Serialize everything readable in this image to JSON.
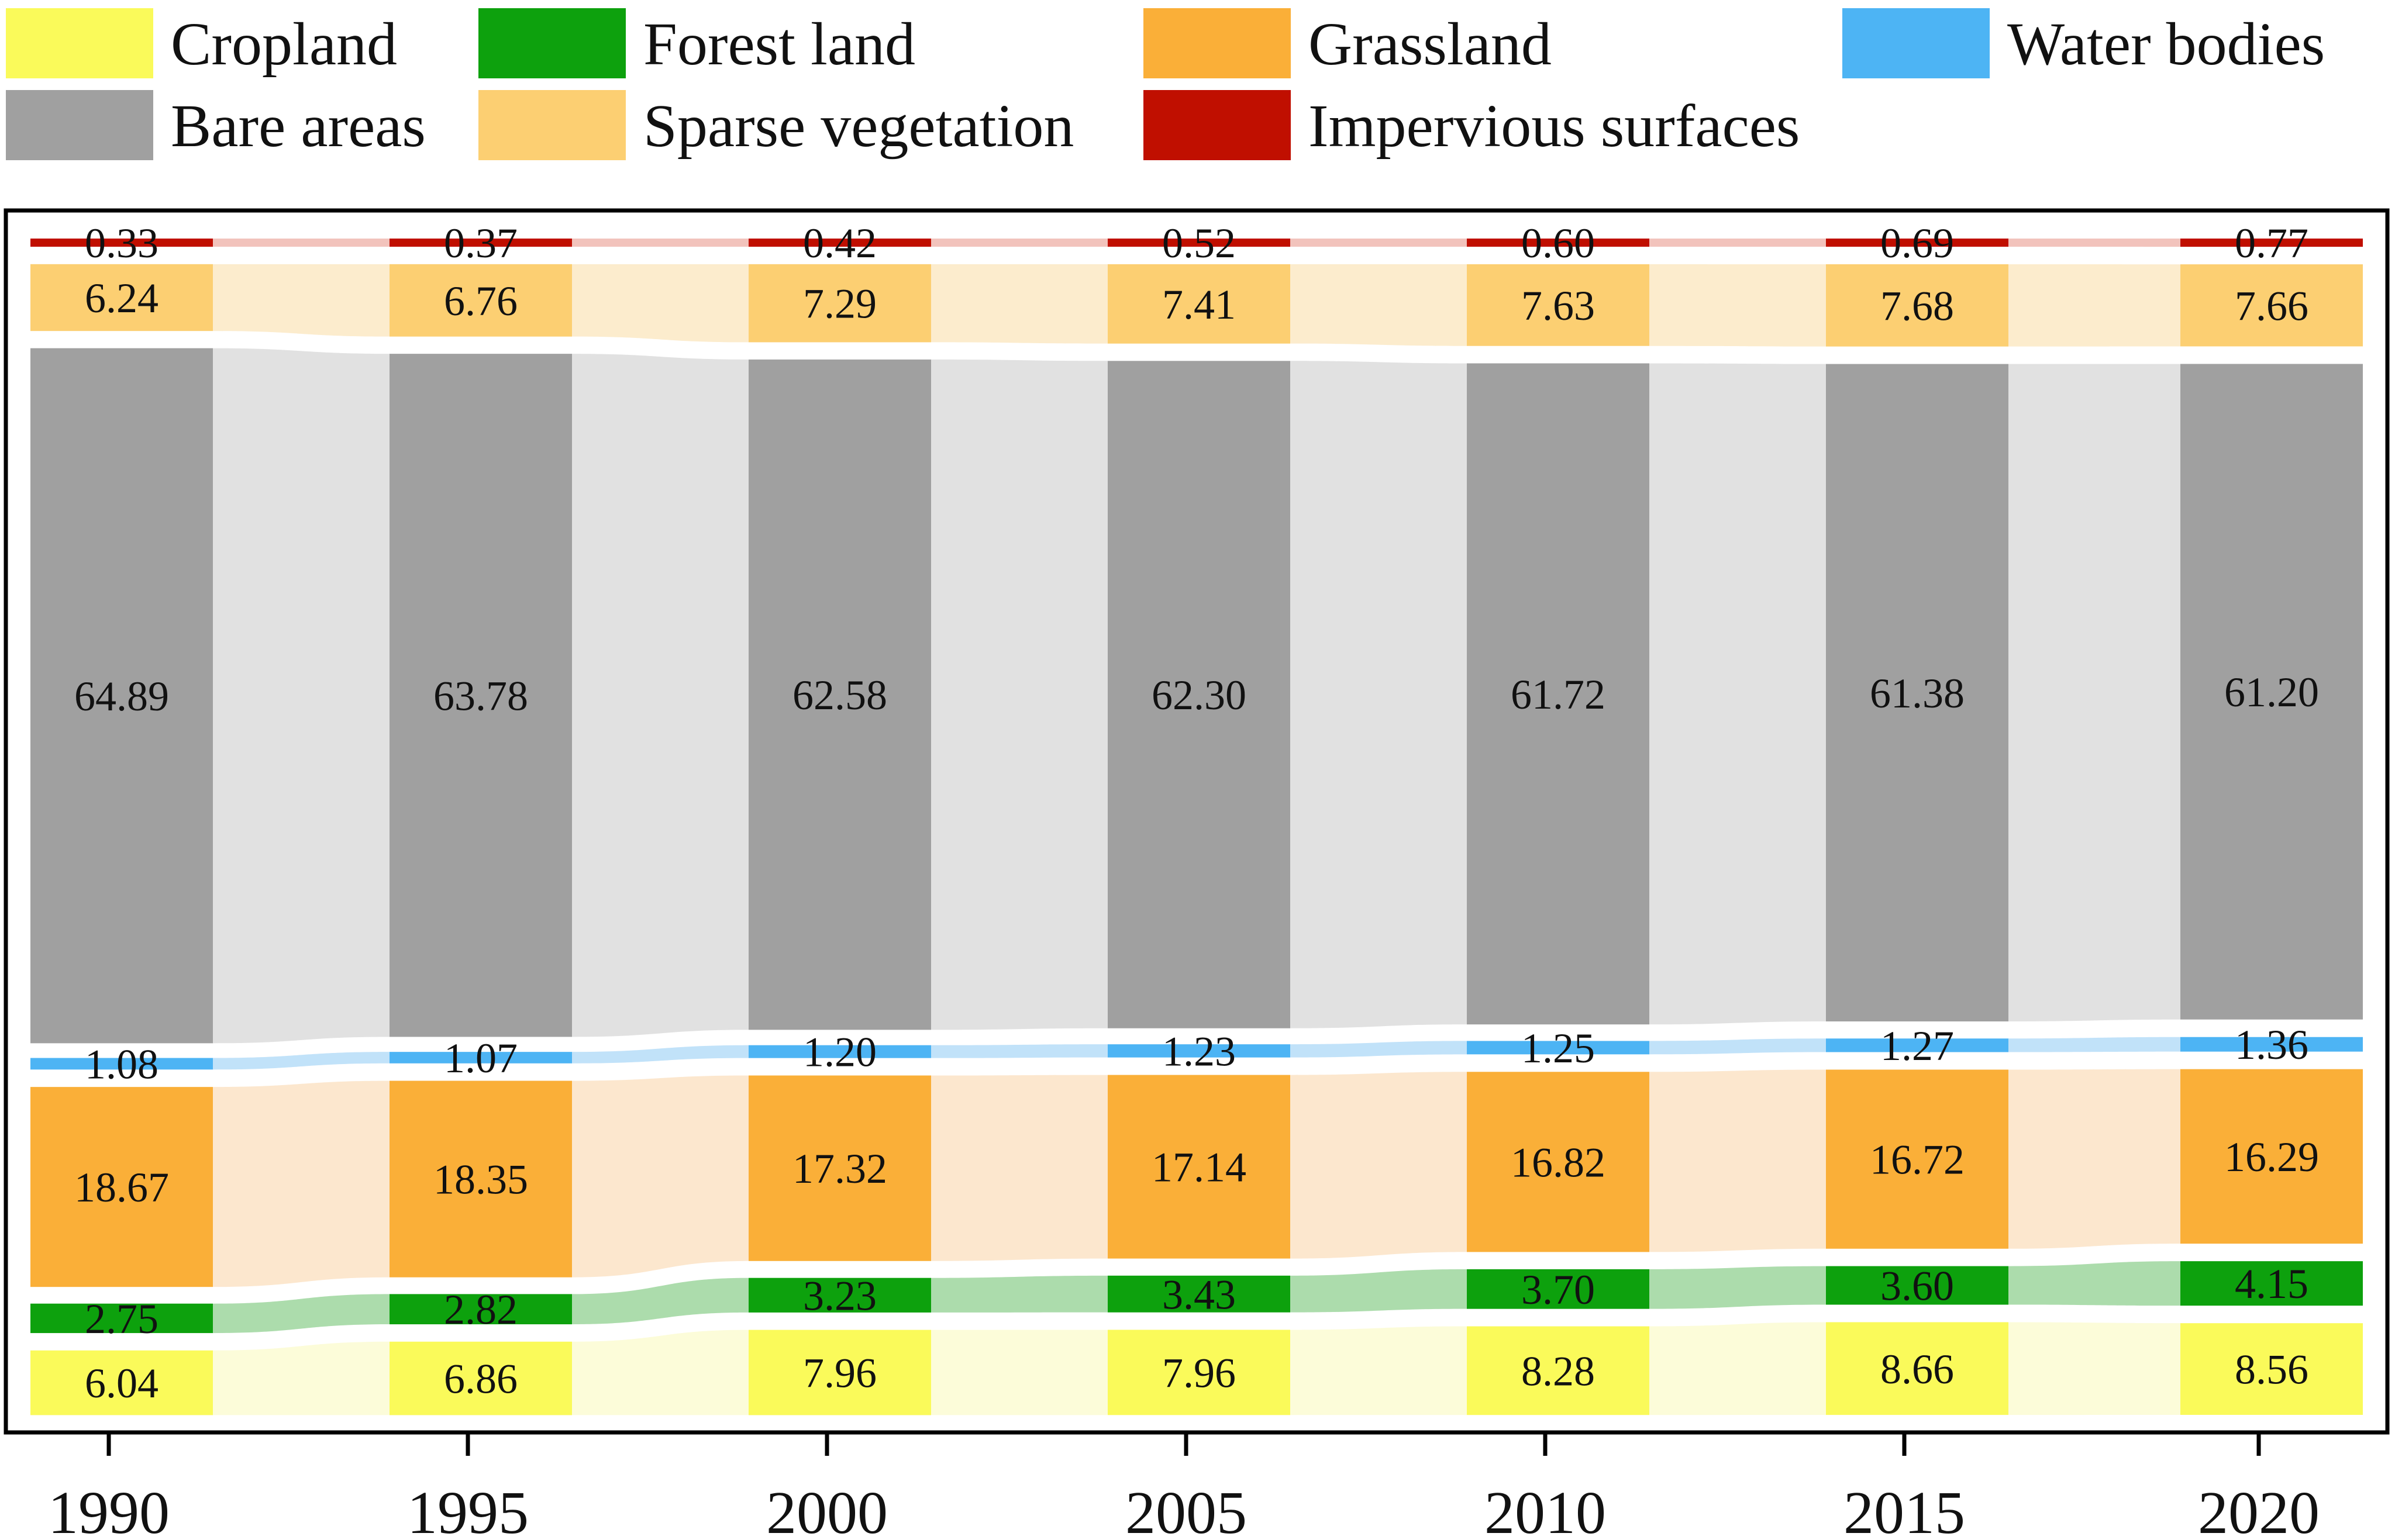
{
  "chart_data": {
    "type": "sankey",
    "xlabel": "",
    "ylabel": "",
    "categories": [
      "1990",
      "1995",
      "2000",
      "2005",
      "2010",
      "2015",
      "2020"
    ],
    "legend_position": "top",
    "classes": [
      {
        "key": "impervious",
        "name": "Impervious surfaces",
        "color": "#C00F00"
      },
      {
        "key": "sparse",
        "name": "Sparse vegetation",
        "color": "#FCCF72"
      },
      {
        "key": "bare",
        "name": "Bare areas",
        "color": "#A0A0A0"
      },
      {
        "key": "water",
        "name": "Water bodies",
        "color": "#4DB4F4"
      },
      {
        "key": "grass",
        "name": "Grassland",
        "color": "#FAAF38"
      },
      {
        "key": "forest",
        "name": "Forest land",
        "color": "#0DA10D"
      },
      {
        "key": "crop",
        "name": "Cropland",
        "color": "#FAFA5A"
      }
    ],
    "legend_order": [
      "crop",
      "forest",
      "grass",
      "water",
      "bare",
      "sparse",
      "impervious"
    ],
    "series": [
      {
        "key": "impervious",
        "name": "Impervious surfaces",
        "values": [
          0.33,
          0.37,
          0.42,
          0.52,
          0.6,
          0.69,
          0.77
        ],
        "labels": [
          "0.33",
          "0.37",
          "0.42",
          "0.52",
          "0.60",
          "0.69",
          "0.77"
        ]
      },
      {
        "key": "sparse",
        "name": "Sparse vegetation",
        "values": [
          6.24,
          6.76,
          7.29,
          7.41,
          7.63,
          7.68,
          7.66
        ],
        "labels": [
          "6.24",
          "6.76",
          "7.29",
          "7.41",
          "7.63",
          "7.68",
          "7.66"
        ]
      },
      {
        "key": "bare",
        "name": "Bare areas",
        "values": [
          64.89,
          63.78,
          62.58,
          62.3,
          61.72,
          61.38,
          61.2
        ],
        "labels": [
          "64.89",
          "63.78",
          "62.58",
          "62.30",
          "61.72",
          "61.38",
          "61.20"
        ]
      },
      {
        "key": "water",
        "name": "Water bodies",
        "values": [
          1.08,
          1.07,
          1.2,
          1.23,
          1.25,
          1.27,
          1.36
        ],
        "labels": [
          "1.08",
          "1.07",
          "1.20",
          "1.23",
          "1.25",
          "1.27",
          "1.36"
        ]
      },
      {
        "key": "grass",
        "name": "Grassland",
        "values": [
          18.67,
          18.35,
          17.32,
          17.14,
          16.82,
          16.72,
          16.29
        ],
        "labels": [
          "18.67",
          "18.35",
          "17.32",
          "17.14",
          "16.82",
          "16.72",
          "16.29"
        ]
      },
      {
        "key": "forest",
        "name": "Forest land",
        "values": [
          2.75,
          2.82,
          3.23,
          3.43,
          3.7,
          3.6,
          4.15
        ],
        "labels": [
          "2.75",
          "2.82",
          "3.23",
          "3.43",
          "3.70",
          "3.60",
          "4.15"
        ]
      },
      {
        "key": "crop",
        "name": "Cropland",
        "values": [
          6.04,
          6.86,
          7.96,
          7.96,
          8.28,
          8.66,
          8.56
        ],
        "labels": [
          "6.04",
          "6.86",
          "7.96",
          "7.96",
          "8.28",
          "8.66",
          "8.56"
        ]
      }
    ],
    "flow_fill": {
      "impervious": "#F0B8B0",
      "sparse": "#FCE9C4",
      "bare": "#DCDCDC",
      "water": "#B6DDF8",
      "grass": "#FCE3C6",
      "forest": "#9ED69E",
      "crop": "#FCFCD2"
    }
  }
}
